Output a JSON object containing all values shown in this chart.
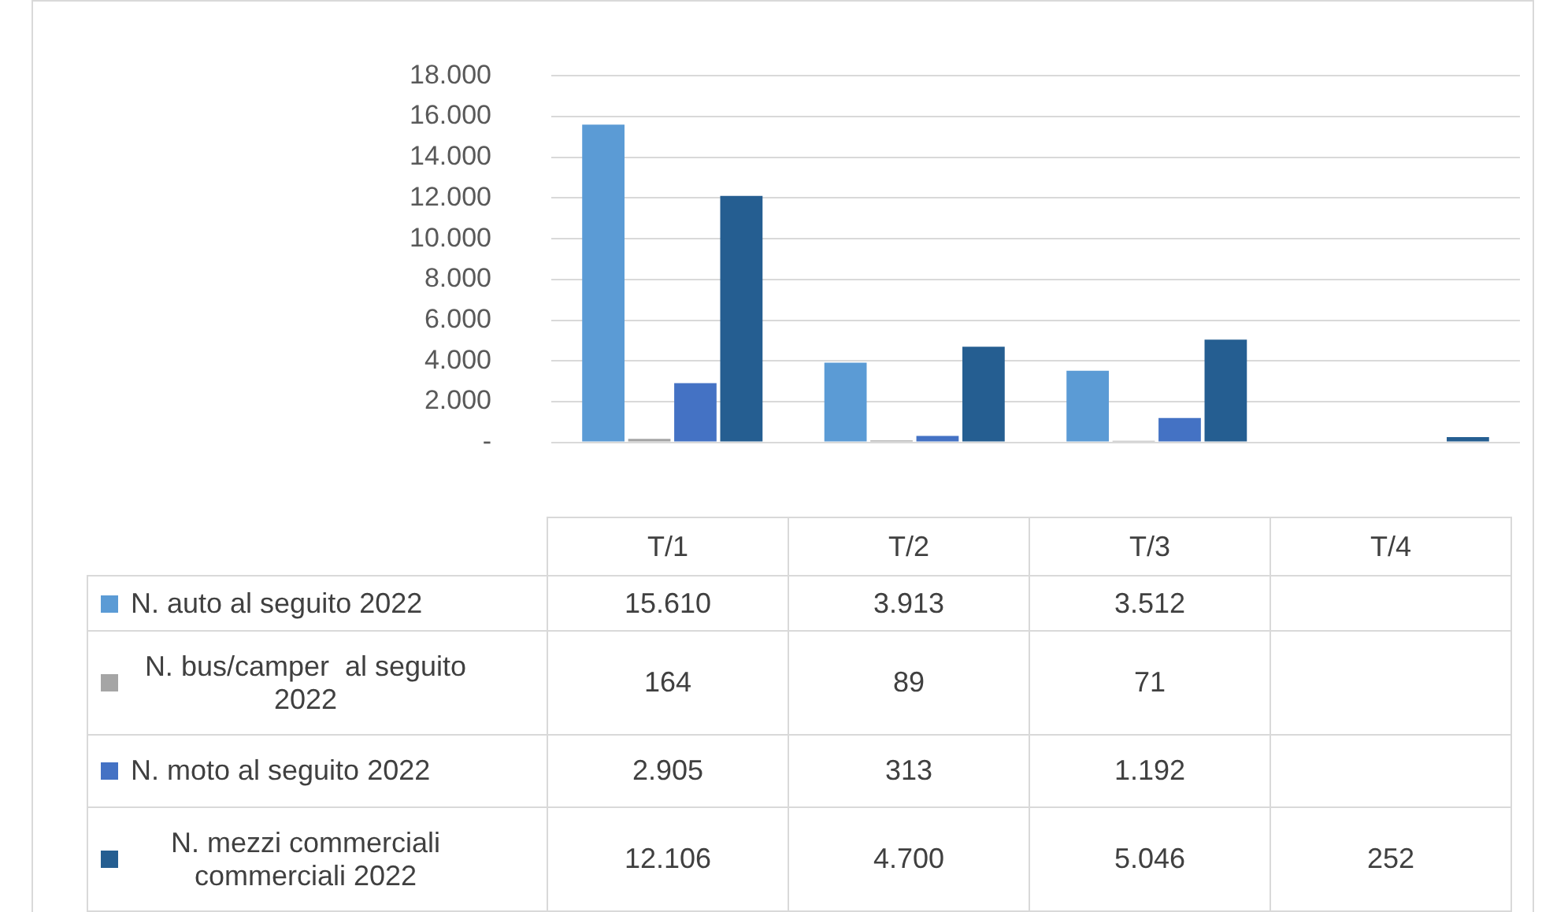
{
  "chart_data": {
    "type": "bar",
    "categories": [
      "T/1",
      "T/2",
      "T/3",
      "T/4"
    ],
    "series": [
      {
        "name": "N. auto al seguito 2022",
        "color": "#5b9bd5",
        "values": [
          15610,
          3913,
          3512,
          null
        ],
        "value_labels": [
          "15.610",
          "3.913",
          "3.512",
          null
        ]
      },
      {
        "name": "N. bus/camper  al seguito 2022",
        "color": "#a5a5a5",
        "values": [
          164,
          89,
          71,
          null
        ],
        "value_labels": [
          "164",
          "89",
          "71",
          null
        ]
      },
      {
        "name": "N. moto al seguito 2022",
        "color": "#4472c4",
        "values": [
          2905,
          313,
          1192,
          null
        ],
        "value_labels": [
          "2.905",
          "313",
          "1.192",
          null
        ]
      },
      {
        "name": "N. mezzi commerciali commerciali 2022",
        "color": "#255e91",
        "values": [
          12106,
          4700,
          5046,
          252
        ],
        "value_labels": [
          "12.106",
          "4.700",
          "5.046",
          "252"
        ]
      }
    ],
    "ylim": [
      0,
      18000
    ],
    "yticks": [
      {
        "value": 0,
        "label": "-"
      },
      {
        "value": 2000,
        "label": "2.000"
      },
      {
        "value": 4000,
        "label": "4.000"
      },
      {
        "value": 6000,
        "label": "6.000"
      },
      {
        "value": 8000,
        "label": "8.000"
      },
      {
        "value": 10000,
        "label": "10.000"
      },
      {
        "value": 12000,
        "label": "12.000"
      },
      {
        "value": 14000,
        "label": "14.000"
      },
      {
        "value": 16000,
        "label": "16.000"
      },
      {
        "value": 18000,
        "label": "18.000"
      }
    ],
    "grid": "y",
    "legend": "bottom"
  }
}
